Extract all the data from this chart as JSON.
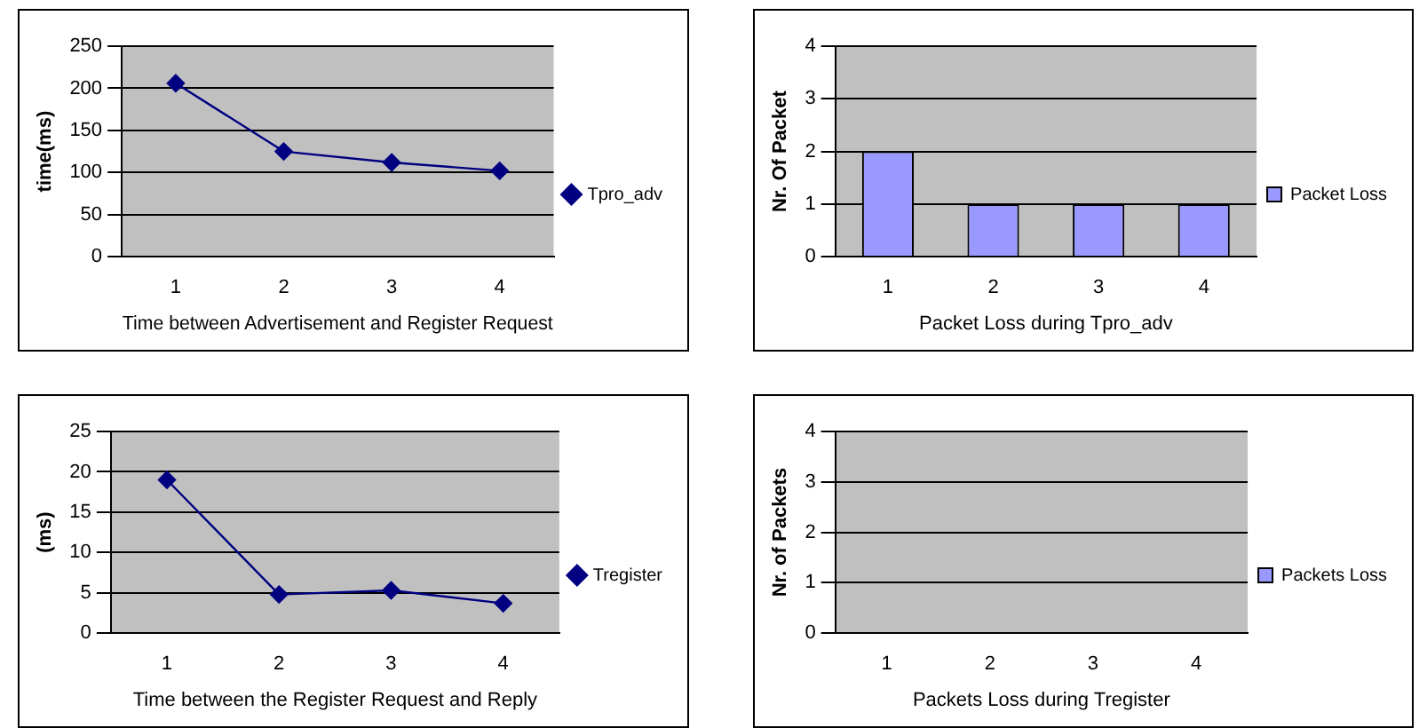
{
  "chart_data": [
    {
      "type": "line",
      "ylabel": "time(ms)",
      "xlabel": "Time between Advertisement and Register Request",
      "categories": [
        "1",
        "2",
        "3",
        "4"
      ],
      "series": [
        {
          "name": "Tpro_adv",
          "color": "#000080",
          "values": [
            206,
            125,
            112,
            102
          ]
        }
      ],
      "ylim": [
        0,
        250
      ],
      "yticks": [
        0,
        50,
        100,
        150,
        200,
        250
      ],
      "grid": "y",
      "legend": "right",
      "marker": "diamond"
    },
    {
      "type": "bar",
      "ylabel": "Nr. Of Packet",
      "xlabel": "Packet Loss during Tpro_adv",
      "categories": [
        "1",
        "2",
        "3",
        "4"
      ],
      "series": [
        {
          "name": "Packet Loss",
          "color": "#9999ff",
          "values": [
            2,
            1,
            1,
            1
          ]
        }
      ],
      "ylim": [
        0,
        4
      ],
      "yticks": [
        0,
        1,
        2,
        3,
        4
      ],
      "grid": "y",
      "legend": "right"
    },
    {
      "type": "line",
      "ylabel": "(ms)",
      "xlabel": "Time between the Register Request and Reply",
      "categories": [
        "1",
        "2",
        "3",
        "4"
      ],
      "series": [
        {
          "name": "Tregister",
          "color": "#000080",
          "values": [
            19,
            4.8,
            5.3,
            3.7
          ]
        }
      ],
      "ylim": [
        0,
        25
      ],
      "yticks": [
        0,
        5,
        10,
        15,
        20,
        25
      ],
      "grid": "y",
      "legend": "right",
      "marker": "diamond"
    },
    {
      "type": "bar",
      "ylabel": "Nr. of Packets",
      "xlabel": "Packets Loss during Tregister",
      "categories": [
        "1",
        "2",
        "3",
        "4"
      ],
      "series": [
        {
          "name": "Packets Loss",
          "color": "#9999ff",
          "values": [
            0,
            0,
            0,
            0
          ]
        }
      ],
      "ylim": [
        0,
        4
      ],
      "yticks": [
        0,
        1,
        2,
        3,
        4
      ],
      "grid": "y",
      "legend": "right"
    }
  ]
}
